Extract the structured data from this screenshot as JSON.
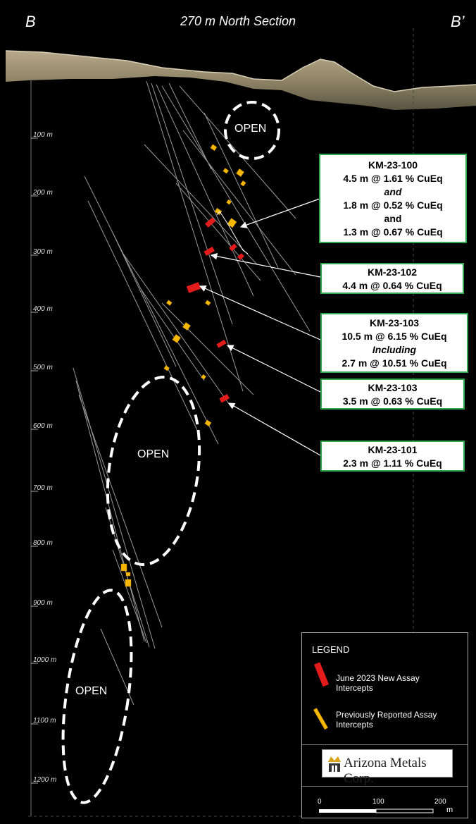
{
  "header": {
    "left_label": "B",
    "right_label": "B’",
    "title": "270 m North Section"
  },
  "depth_labels": [
    "100 m",
    "200 m",
    "300 m",
    "400 m",
    "500 m",
    "600 m",
    "700 m",
    "800 m",
    "900 m",
    "1000 m",
    "1100 m",
    "1200 m"
  ],
  "open_labels": [
    "OPEN",
    "OPEN",
    "OPEN"
  ],
  "callouts": [
    {
      "lines": [
        "KM-23-100",
        "4.5 m @ 1.61 % CuEq",
        "and",
        "1.8 m @ 0.52 % CuEq",
        "and",
        "1.3 m @ 0.67 % CuEq"
      ]
    },
    {
      "lines": [
        "KM-23-102",
        "4.4 m @ 0.64 % CuEq"
      ]
    },
    {
      "lines": [
        "KM-23-103",
        "10.5 m @ 6.15 % CuEq",
        "Including",
        "2.7 m @ 10.51 % CuEq"
      ]
    },
    {
      "lines": [
        "KM-23-103",
        "3.5 m @ 0.63 % CuEq"
      ]
    },
    {
      "lines": [
        "KM-23-101",
        "2.3 m @ 1.11 % CuEq"
      ]
    }
  ],
  "legend": {
    "title": "LEGEND",
    "new_label_1": "June 2023 New Assay",
    "new_label_2": "Intercepts",
    "prev_label_1": "Previously Reported Assay",
    "prev_label_2": "Intercepts",
    "logo_text": "Arizona Metals Corp.",
    "scale_0": "0",
    "scale_100": "100",
    "scale_200": "200",
    "scale_unit": "m"
  },
  "colors": {
    "new_intercept": "#e31b1b",
    "previous_intercept": "#f5b800",
    "callout_border": "#2fa84f"
  }
}
